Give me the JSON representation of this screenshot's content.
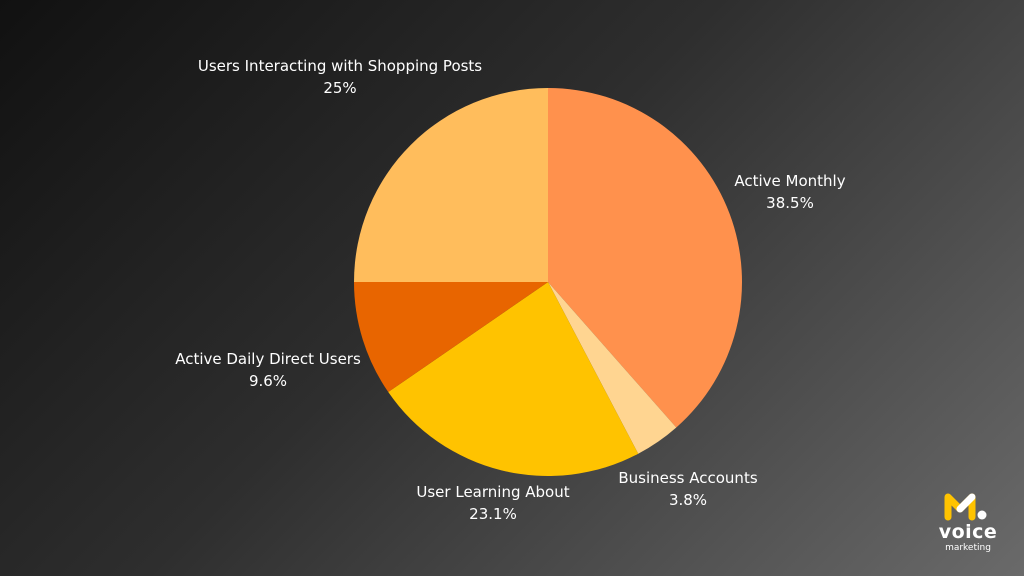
{
  "chart_data": {
    "type": "pie",
    "title": "",
    "slices": [
      {
        "label": "Active Monthly",
        "value": 38.5,
        "value_label": "38.5%",
        "color": "#FF914D"
      },
      {
        "label": "Business Accounts",
        "value": 3.8,
        "value_label": "3.8%",
        "color": "#FFD591"
      },
      {
        "label": "User Learning About",
        "value": 23.1,
        "value_label": "23.1%",
        "color": "#FFC300"
      },
      {
        "label": "Active Daily Direct Users",
        "value": 9.6,
        "value_label": "9.6%",
        "color": "#E86500"
      },
      {
        "label": "Users Interacting with Shopping Posts",
        "value": 25,
        "value_label": "25%",
        "color": "#FFBD5C"
      }
    ]
  },
  "logo": {
    "word": "voice",
    "sub": "marketing",
    "accent_color": "#FFC300",
    "icon": "m-letter-icon"
  },
  "colors": {
    "label_text": "#ffffff"
  }
}
